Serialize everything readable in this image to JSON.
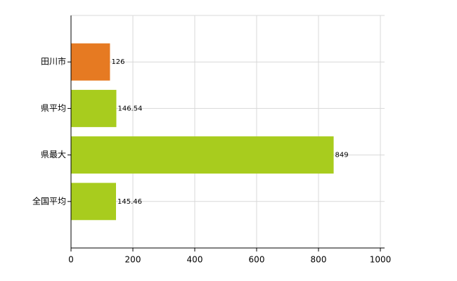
{
  "chart_data": {
    "type": "barh",
    "categories": [
      "田川市",
      "県平均",
      "県最大",
      "全国平均"
    ],
    "values": [
      126,
      146.54,
      849,
      145.46
    ],
    "colors": [
      "#e67a22",
      "#a8cc1e",
      "#a8cc1e",
      "#a8cc1e"
    ],
    "xlim": [
      0,
      1000
    ],
    "xticks": [
      0,
      200,
      400,
      600,
      800,
      1000
    ],
    "grid": true
  }
}
